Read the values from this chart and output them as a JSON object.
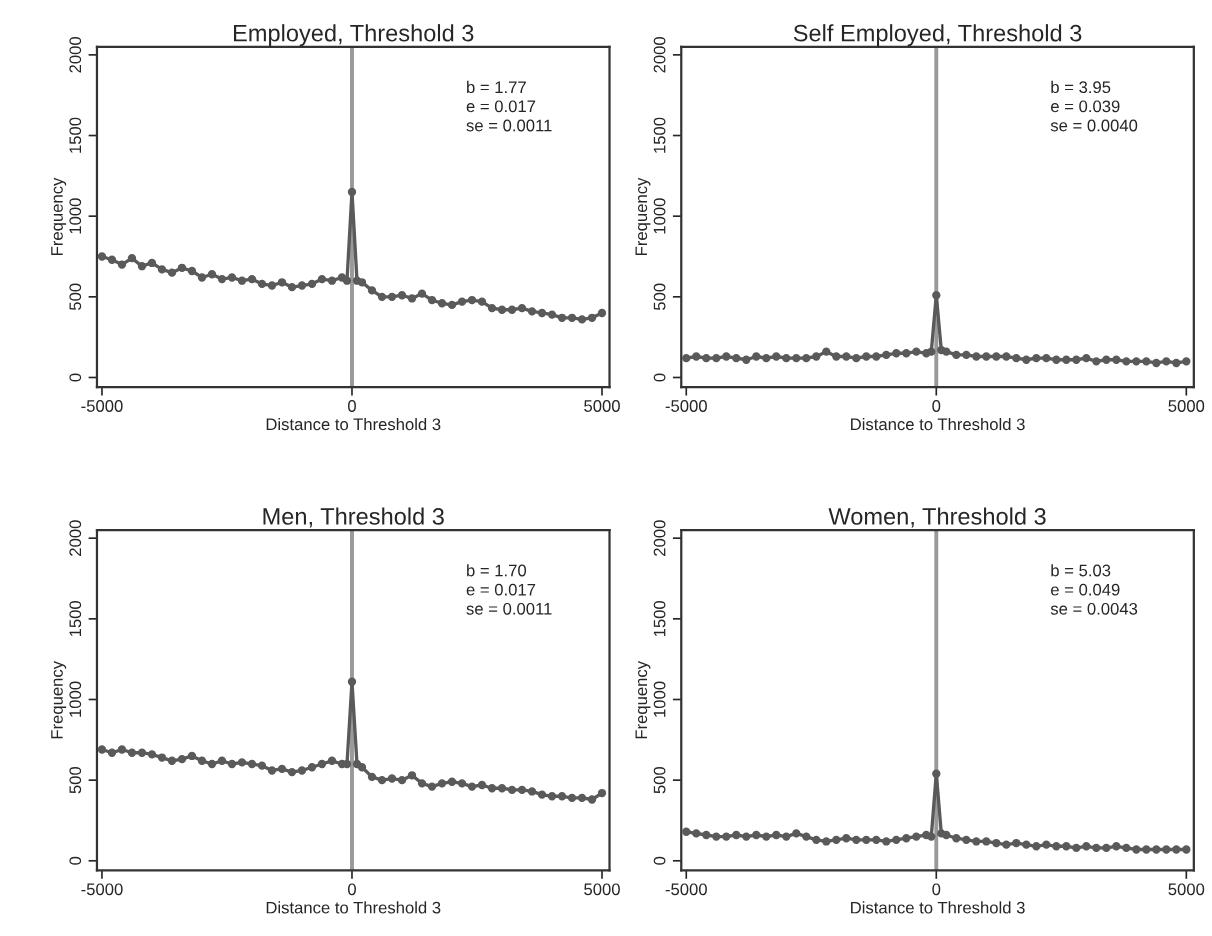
{
  "chart_data": [
    {
      "type": "line",
      "title": "Employed, Threshold 3",
      "xlabel": "Distance to Threshold 3",
      "ylabel": "Frequency",
      "marker": "circle",
      "line_style": "solid",
      "grid": false,
      "x": [
        -5000,
        -4800,
        -4600,
        -4400,
        -4200,
        -4000,
        -3800,
        -3600,
        -3400,
        -3200,
        -3000,
        -2800,
        -2600,
        -2400,
        -2200,
        -2000,
        -1800,
        -1600,
        -1400,
        -1200,
        -1000,
        -800,
        -600,
        -400,
        -200,
        -100,
        0,
        100,
        200,
        400,
        600,
        800,
        1000,
        1200,
        1400,
        1600,
        1800,
        2000,
        2200,
        2400,
        2600,
        2800,
        3000,
        3200,
        3400,
        3600,
        3800,
        4000,
        4200,
        4400,
        4600,
        4800,
        5000
      ],
      "series": [
        {
          "color": "#5a5a5a",
          "values": [
            750,
            730,
            700,
            740,
            690,
            710,
            670,
            650,
            680,
            660,
            620,
            640,
            610,
            620,
            600,
            610,
            580,
            570,
            590,
            560,
            570,
            580,
            610,
            600,
            620,
            600,
            1150,
            600,
            590,
            540,
            500,
            500,
            510,
            490,
            520,
            480,
            460,
            450,
            470,
            480,
            470,
            430,
            420,
            420,
            430,
            410,
            400,
            390,
            370,
            370,
            360,
            370,
            400
          ]
        }
      ],
      "xlim": [
        -5100,
        5150
      ],
      "ylim": [
        -60,
        2050
      ],
      "xticks": [
        -5000,
        0,
        5000
      ],
      "yticks": [
        0,
        500,
        1000,
        1500,
        2000
      ],
      "ref_lines": [
        {
          "axis": "x",
          "value": 0,
          "color": "#999999"
        }
      ],
      "annotations": [
        "b = 1.77",
        "e = 0.017",
        "se = 0.0011"
      ]
    },
    {
      "type": "line",
      "title": "Self Employed, Threshold 3",
      "xlabel": "Distance to Threshold 3",
      "ylabel": "Frequency",
      "marker": "circle",
      "line_style": "solid",
      "grid": false,
      "x": [
        -5000,
        -4800,
        -4600,
        -4400,
        -4200,
        -4000,
        -3800,
        -3600,
        -3400,
        -3200,
        -3000,
        -2800,
        -2600,
        -2400,
        -2200,
        -2000,
        -1800,
        -1600,
        -1400,
        -1200,
        -1000,
        -800,
        -600,
        -400,
        -200,
        -100,
        0,
        100,
        200,
        400,
        600,
        800,
        1000,
        1200,
        1400,
        1600,
        1800,
        2000,
        2200,
        2400,
        2600,
        2800,
        3000,
        3200,
        3400,
        3600,
        3800,
        4000,
        4200,
        4400,
        4600,
        4800,
        5000
      ],
      "series": [
        {
          "color": "#5a5a5a",
          "values": [
            120,
            130,
            120,
            120,
            130,
            120,
            110,
            130,
            120,
            130,
            120,
            120,
            120,
            130,
            160,
            130,
            130,
            120,
            130,
            130,
            140,
            150,
            150,
            160,
            150,
            160,
            510,
            170,
            160,
            140,
            140,
            130,
            130,
            130,
            130,
            120,
            110,
            120,
            120,
            110,
            110,
            110,
            120,
            100,
            110,
            110,
            100,
            100,
            100,
            90,
            100,
            90,
            100
          ]
        }
      ],
      "xlim": [
        -5100,
        5150
      ],
      "ylim": [
        -60,
        2050
      ],
      "xticks": [
        -5000,
        0,
        5000
      ],
      "yticks": [
        0,
        500,
        1000,
        1500,
        2000
      ],
      "ref_lines": [
        {
          "axis": "x",
          "value": 0,
          "color": "#999999"
        }
      ],
      "annotations": [
        "b = 3.95",
        "e = 0.039",
        "se = 0.0040"
      ]
    },
    {
      "type": "line",
      "title": "Men, Threshold 3",
      "xlabel": "Distance to Threshold 3",
      "ylabel": "Frequency",
      "marker": "circle",
      "line_style": "solid",
      "grid": false,
      "x": [
        -5000,
        -4800,
        -4600,
        -4400,
        -4200,
        -4000,
        -3800,
        -3600,
        -3400,
        -3200,
        -3000,
        -2800,
        -2600,
        -2400,
        -2200,
        -2000,
        -1800,
        -1600,
        -1400,
        -1200,
        -1000,
        -800,
        -600,
        -400,
        -200,
        -100,
        0,
        100,
        200,
        400,
        600,
        800,
        1000,
        1200,
        1400,
        1600,
        1800,
        2000,
        2200,
        2400,
        2600,
        2800,
        3000,
        3200,
        3400,
        3600,
        3800,
        4000,
        4200,
        4400,
        4600,
        4800,
        5000
      ],
      "series": [
        {
          "color": "#5a5a5a",
          "values": [
            690,
            670,
            690,
            670,
            670,
            660,
            640,
            620,
            630,
            650,
            620,
            600,
            620,
            600,
            610,
            600,
            590,
            560,
            570,
            550,
            560,
            580,
            600,
            620,
            600,
            600,
            1110,
            600,
            580,
            520,
            500,
            510,
            500,
            530,
            480,
            460,
            480,
            490,
            480,
            460,
            470,
            450,
            450,
            440,
            440,
            430,
            410,
            400,
            400,
            390,
            390,
            380,
            420
          ]
        }
      ],
      "xlim": [
        -5100,
        5150
      ],
      "ylim": [
        -60,
        2050
      ],
      "xticks": [
        -5000,
        0,
        5000
      ],
      "yticks": [
        0,
        500,
        1000,
        1500,
        2000
      ],
      "ref_lines": [
        {
          "axis": "x",
          "value": 0,
          "color": "#999999"
        }
      ],
      "annotations": [
        "b = 1.70",
        "e = 0.017",
        "se = 0.0011"
      ]
    },
    {
      "type": "line",
      "title": "Women, Threshold 3",
      "xlabel": "Distance to Threshold 3",
      "ylabel": "Frequency",
      "marker": "circle",
      "line_style": "solid",
      "grid": false,
      "x": [
        -5000,
        -4800,
        -4600,
        -4400,
        -4200,
        -4000,
        -3800,
        -3600,
        -3400,
        -3200,
        -3000,
        -2800,
        -2600,
        -2400,
        -2200,
        -2000,
        -1800,
        -1600,
        -1400,
        -1200,
        -1000,
        -800,
        -600,
        -400,
        -200,
        -100,
        0,
        100,
        200,
        400,
        600,
        800,
        1000,
        1200,
        1400,
        1600,
        1800,
        2000,
        2200,
        2400,
        2600,
        2800,
        3000,
        3200,
        3400,
        3600,
        3800,
        4000,
        4200,
        4400,
        4600,
        4800,
        5000
      ],
      "series": [
        {
          "color": "#5a5a5a",
          "values": [
            180,
            170,
            160,
            150,
            150,
            160,
            150,
            160,
            150,
            160,
            150,
            170,
            150,
            130,
            120,
            130,
            140,
            130,
            130,
            130,
            120,
            130,
            140,
            150,
            160,
            150,
            540,
            170,
            160,
            140,
            130,
            120,
            120,
            110,
            100,
            110,
            100,
            90,
            100,
            90,
            90,
            80,
            90,
            80,
            80,
            90,
            80,
            70,
            70,
            70,
            70,
            70,
            70
          ]
        }
      ],
      "xlim": [
        -5100,
        5150
      ],
      "ylim": [
        -60,
        2050
      ],
      "xticks": [
        -5000,
        0,
        5000
      ],
      "yticks": [
        0,
        500,
        1000,
        1500,
        2000
      ],
      "ref_lines": [
        {
          "axis": "x",
          "value": 0,
          "color": "#999999"
        }
      ],
      "annotations": [
        "b = 5.03",
        "e = 0.049",
        "se = 0.0043"
      ]
    }
  ]
}
